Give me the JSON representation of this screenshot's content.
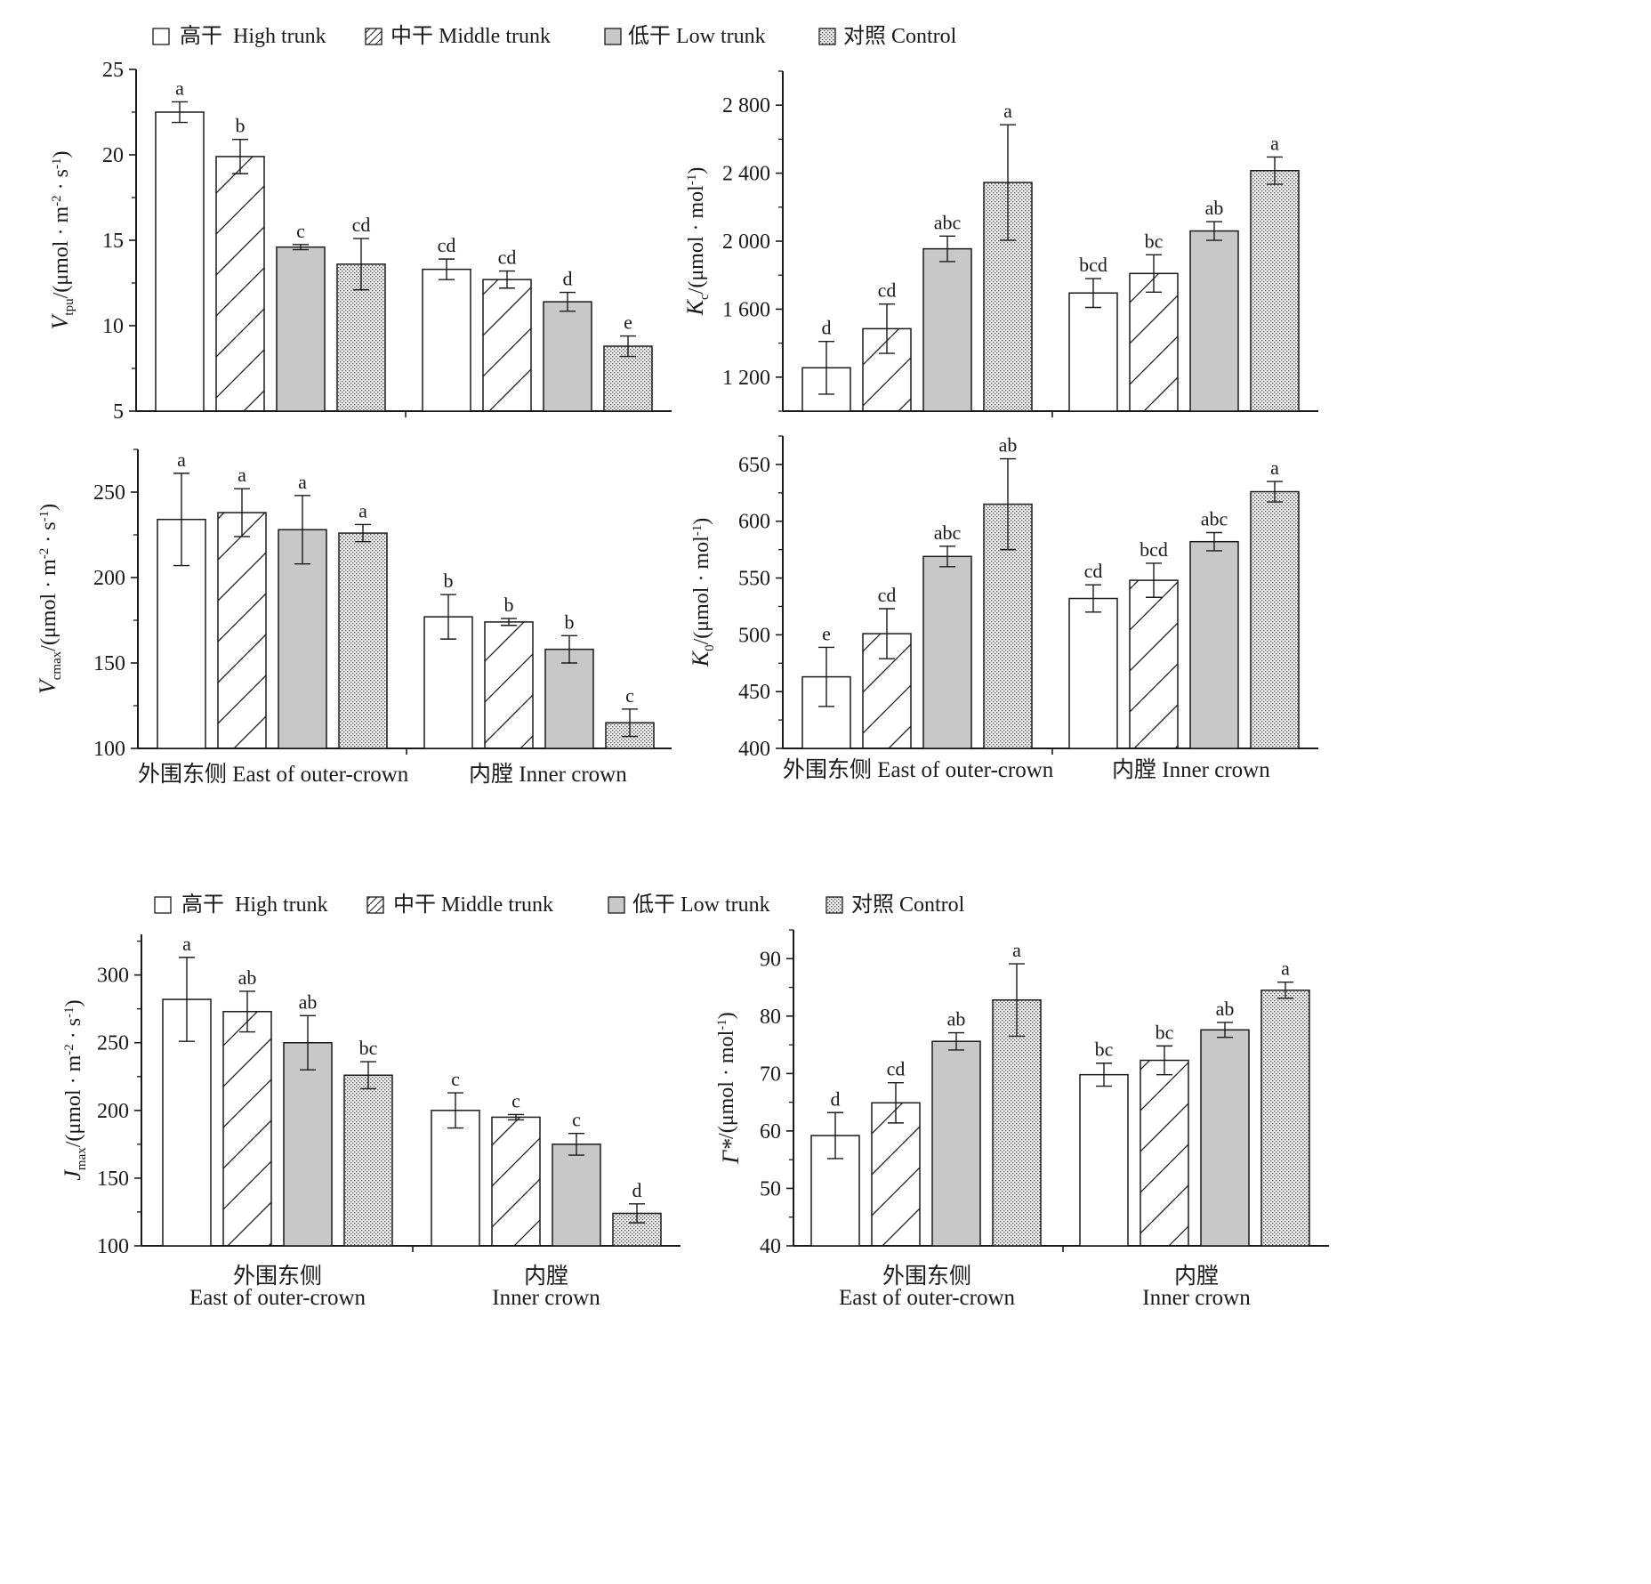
{
  "legend": {
    "items": [
      {
        "label": "高干  High trunk",
        "pattern": "white"
      },
      {
        "label": "中干 Middle trunk",
        "pattern": "hatch"
      },
      {
        "label": "低干 Low trunk",
        "pattern": "gray"
      },
      {
        "label": "对照 Control",
        "pattern": "dots"
      }
    ]
  },
  "colors": {
    "axis": "#1a1a1a",
    "gray_fill": "#c8c8c8",
    "dot_fill": "#666666"
  },
  "chart_data": [
    {
      "id": "vtpu",
      "type": "bar",
      "ylabel": {
        "main": "V",
        "sub": "tpu",
        "rest": "/(μmol · m",
        "sup1": "-2",
        "mid": " · s",
        "sup2": "-1",
        "end": ")"
      },
      "ylim": [
        5,
        25
      ],
      "yticks": [
        {
          "v": 5,
          "t": "5"
        },
        {
          "v": 10,
          "t": "10"
        },
        {
          "v": 15,
          "t": "15"
        },
        {
          "v": 20,
          "t": "20"
        },
        {
          "v": 25,
          "t": "25"
        }
      ],
      "groups": [
        {
          "values": [
            22.5,
            19.9,
            14.6,
            13.6
          ],
          "errors": [
            0.6,
            1.0,
            0.15,
            1.5
          ],
          "letters": [
            "a",
            "b",
            "c",
            "cd"
          ]
        },
        {
          "values": [
            13.3,
            12.7,
            11.4,
            8.8
          ],
          "errors": [
            0.6,
            0.5,
            0.55,
            0.6
          ],
          "letters": [
            "cd",
            "cd",
            "d",
            "e"
          ]
        }
      ]
    },
    {
      "id": "kc",
      "type": "bar",
      "ylabel": {
        "main": "K",
        "sub": "c",
        "rest": "/(μmol · mol",
        "sup1": "-1",
        "mid": "",
        "sup2": "",
        "end": ")"
      },
      "ylim": [
        1000,
        3000
      ],
      "yticks": [
        {
          "v": 1200,
          "t": "1 200"
        },
        {
          "v": 1600,
          "t": "1 600"
        },
        {
          "v": 2000,
          "t": "2 000"
        },
        {
          "v": 2400,
          "t": "2 400"
        },
        {
          "v": 2800,
          "t": "2 800"
        }
      ],
      "groups": [
        {
          "values": [
            1255,
            1485,
            1955,
            2345
          ],
          "errors": [
            155,
            145,
            75,
            340
          ],
          "letters": [
            "d",
            "cd",
            "abc",
            "a"
          ]
        },
        {
          "values": [
            1695,
            1810,
            2060,
            2415
          ],
          "errors": [
            85,
            110,
            55,
            80
          ],
          "letters": [
            "bcd",
            "bc",
            "ab",
            "a"
          ]
        }
      ]
    },
    {
      "id": "vcmax",
      "type": "bar",
      "ylabel": {
        "main": "V",
        "sub": "cmax",
        "rest": "/(μmol · m",
        "sup1": "-2",
        "mid": " · s",
        "sup2": "-1",
        "end": ")"
      },
      "ylim": [
        100,
        275
      ],
      "yticks": [
        {
          "v": 100,
          "t": "100"
        },
        {
          "v": 150,
          "t": "150"
        },
        {
          "v": 200,
          "t": "200"
        },
        {
          "v": 250,
          "t": "250"
        }
      ],
      "groups": [
        {
          "values": [
            234,
            238,
            228,
            226
          ],
          "errors": [
            27,
            14,
            20,
            5
          ],
          "letters": [
            "a",
            "a",
            "a",
            "a"
          ]
        },
        {
          "values": [
            177,
            174,
            158,
            115
          ],
          "errors": [
            13,
            2,
            8,
            8
          ],
          "letters": [
            "b",
            "b",
            "b",
            "c"
          ]
        }
      ]
    },
    {
      "id": "ko",
      "type": "bar",
      "ylabel": {
        "main": "K",
        "sub": "0",
        "rest": "/(μmol · mol",
        "sup1": "-1",
        "mid": "",
        "sup2": "",
        "end": ")"
      },
      "ylim": [
        400,
        675
      ],
      "yticks": [
        {
          "v": 400,
          "t": "400"
        },
        {
          "v": 450,
          "t": "450"
        },
        {
          "v": 500,
          "t": "500"
        },
        {
          "v": 550,
          "t": "550"
        },
        {
          "v": 600,
          "t": "600"
        },
        {
          "v": 650,
          "t": "650"
        }
      ],
      "groups": [
        {
          "values": [
            463,
            501,
            569,
            615
          ],
          "errors": [
            26,
            22,
            9,
            40
          ],
          "letters": [
            "e",
            "cd",
            "abc",
            "ab"
          ]
        },
        {
          "values": [
            532,
            548,
            582,
            626
          ],
          "errors": [
            12,
            15,
            8,
            9
          ],
          "letters": [
            "cd",
            "bcd",
            "abc",
            "a"
          ]
        }
      ]
    },
    {
      "id": "jmax",
      "type": "bar",
      "ylabel": {
        "main": "J",
        "sub": "max",
        "rest": "/(μmol · m",
        "sup1": "-2",
        "mid": " · s",
        "sup2": "-1",
        "end": ")"
      },
      "ylim": [
        100,
        330
      ],
      "yticks": [
        {
          "v": 100,
          "t": "100"
        },
        {
          "v": 150,
          "t": "150"
        },
        {
          "v": 200,
          "t": "200"
        },
        {
          "v": 250,
          "t": "250"
        },
        {
          "v": 300,
          "t": "300"
        }
      ],
      "groups": [
        {
          "values": [
            282,
            273,
            250,
            226
          ],
          "errors": [
            31,
            15,
            20,
            10
          ],
          "letters": [
            "a",
            "ab",
            "ab",
            "bc"
          ]
        },
        {
          "values": [
            200,
            195,
            175,
            124
          ],
          "errors": [
            13,
            2,
            8,
            7
          ],
          "letters": [
            "c",
            "c",
            "c",
            "d"
          ]
        }
      ]
    },
    {
      "id": "gamma",
      "type": "bar",
      "ylabel": {
        "main": "Γ*",
        "sub": "",
        "rest": "/(μmol · mol",
        "sup1": "-1",
        "mid": "",
        "sup2": "",
        "end": ")"
      },
      "ylim": [
        40,
        95
      ],
      "yticks": [
        {
          "v": 40,
          "t": "40"
        },
        {
          "v": 50,
          "t": "50"
        },
        {
          "v": 60,
          "t": "60"
        },
        {
          "v": 70,
          "t": "70"
        },
        {
          "v": 80,
          "t": "80"
        },
        {
          "v": 90,
          "t": "90"
        }
      ],
      "groups": [
        {
          "values": [
            59.2,
            64.9,
            75.6,
            82.8
          ],
          "errors": [
            4.0,
            3.5,
            1.5,
            6.3
          ],
          "letters": [
            "d",
            "cd",
            "ab",
            "a"
          ]
        },
        {
          "values": [
            69.8,
            72.3,
            77.6,
            84.5
          ],
          "errors": [
            2.0,
            2.5,
            1.3,
            1.4
          ],
          "letters": [
            "bc",
            "bc",
            "ab",
            "a"
          ]
        }
      ]
    }
  ],
  "categories": {
    "inline": [
      "外围东侧  East of outer-crown",
      "内膛  Inner crown"
    ],
    "cn": [
      "外围东侧",
      "内膛"
    ],
    "en": [
      "East of outer-crown",
      "Inner crown"
    ]
  }
}
